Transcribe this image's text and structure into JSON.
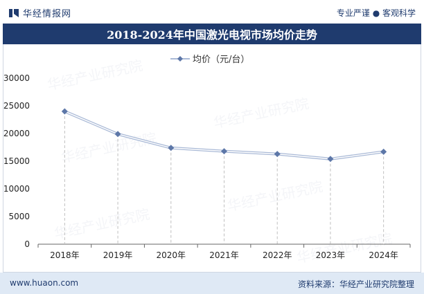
{
  "header": {
    "brand_name": "华经情报网",
    "tagline": "专业严谨 ● 客观科学"
  },
  "title": "2018-2024年中国激光电视市场均价走势",
  "footer": {
    "website": "www.huaon.com",
    "source": "资料来源：华经产业研究院整理"
  },
  "watermark": "华经产业研究院",
  "colors": {
    "brand": "#1f3b6e",
    "line": "#a9b9d6",
    "marker": "#5d77a8",
    "footer_bg": "#dfe9f5"
  },
  "chart_data": {
    "type": "line",
    "categories": [
      "2018年",
      "2019年",
      "2020年",
      "2021年",
      "2022年",
      "2023年",
      "2024年"
    ],
    "series": [
      {
        "name": "均价（元/台）",
        "values": [
          24000,
          19900,
          17400,
          16800,
          16300,
          15400,
          16700
        ]
      }
    ],
    "ylim": [
      0,
      30000
    ],
    "yticks": [
      "0",
      "5000",
      "10000",
      "15000",
      "20000",
      "25000",
      "30000"
    ],
    "legend": "top-center",
    "grid": "vertical dashed drop lines"
  }
}
